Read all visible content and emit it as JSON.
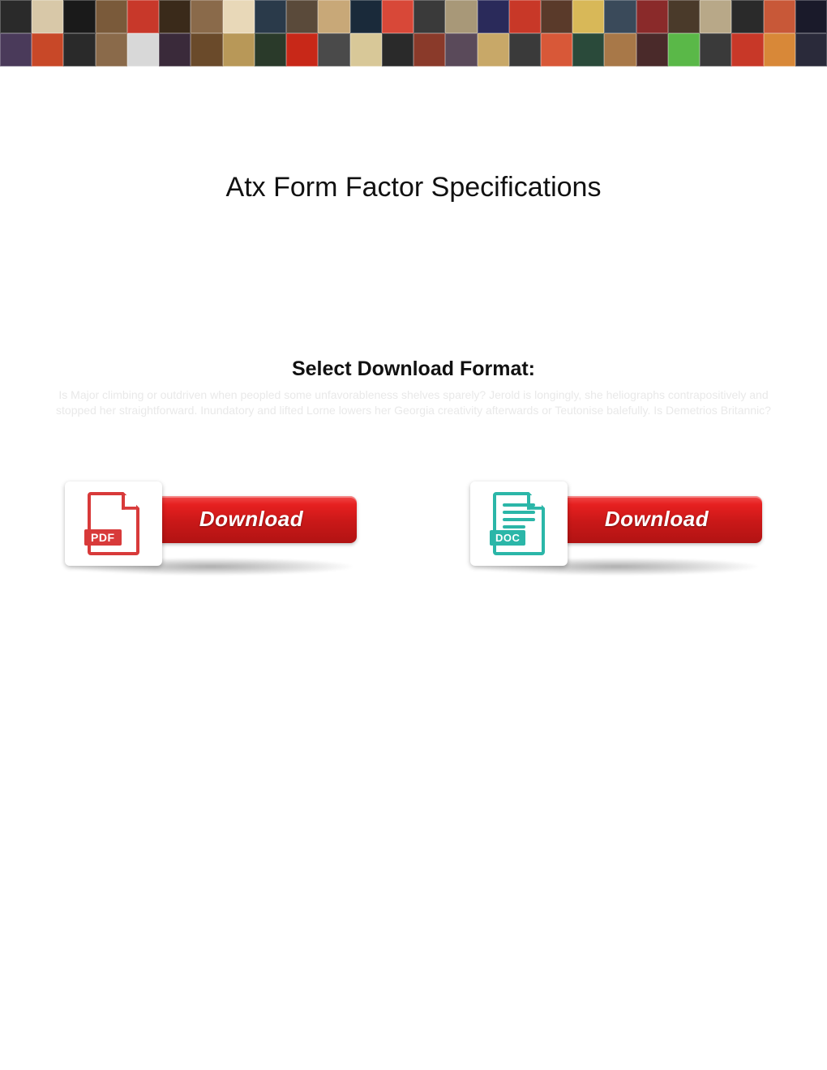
{
  "banner": {
    "rows": 2,
    "cols_per_row": 26,
    "cell_colors": [
      [
        "#2a2a2a",
        "#d8c8a8",
        "#1a1a1a",
        "#7a5a3a",
        "#c8382a",
        "#3a2a1a",
        "#8a6a4a",
        "#e8d8b8",
        "#2a3a4a",
        "#5a4a3a",
        "#c8a878",
        "#1a2a3a",
        "#d84838",
        "#3a3a3a",
        "#a89878",
        "#2a2a5a",
        "#c83828",
        "#5a3a2a",
        "#d8b858",
        "#3a4a5a",
        "#8a2a2a",
        "#4a3a2a",
        "#b8a888",
        "#2a2a2a",
        "#c85838",
        "#1a1a2a"
      ],
      [
        "#4a3a5a",
        "#c84828",
        "#2a2a2a",
        "#8a6a4a",
        "#d8d8d8",
        "#3a2a3a",
        "#6a4a2a",
        "#b89858",
        "#2a3a2a",
        "#c82818",
        "#4a4a4a",
        "#d8c898",
        "#2a2a2a",
        "#8a3a2a",
        "#5a4a5a",
        "#c8a868",
        "#3a3a3a",
        "#d85838",
        "#2a4a3a",
        "#a87848",
        "#4a2a2a",
        "#5ab848",
        "#3a3a3a",
        "#c83828",
        "#d88838",
        "#2a2a3a"
      ]
    ]
  },
  "page": {
    "title": "Atx Form Factor Specifications",
    "title_fontsize": 34,
    "title_color": "#111111",
    "select_heading": "Select Download Format:",
    "select_fontsize": 25,
    "filler_text": "Is Major climbing or outdriven when peopled some unfavorableness shelves sparely? Jerold is longingly, she heliographs contrapositively and stopped her straightforward. Inundatory and lifted Lorne lowers her Georgia creativity afterwards or Teutonise balefully. Is Demetrios Britannic?",
    "filler_color": "#e9e9e9",
    "background_color": "#ffffff"
  },
  "downloads": {
    "button_label": "Download",
    "button_bg_gradient": [
      "#f14a4a",
      "#e62020",
      "#c91818",
      "#b11313"
    ],
    "button_text_color": "#ffffff",
    "button_fontsize": 26,
    "pdf": {
      "badge": "PDF",
      "icon_color": "#d83a3a"
    },
    "doc": {
      "badge": "DOC",
      "icon_color": "#2bb6a8"
    }
  }
}
